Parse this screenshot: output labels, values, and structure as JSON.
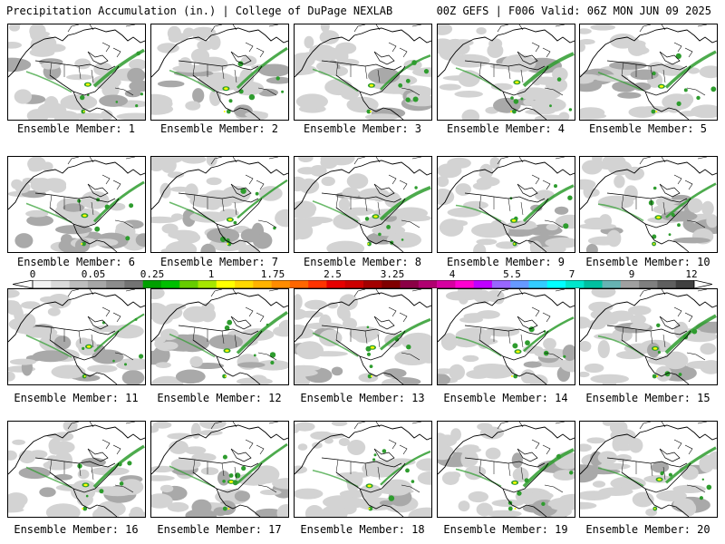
{
  "header": {
    "left": "Precipitation Accumulation (in.) | College of DuPage NEXLAB",
    "right": "00Z GEFS | F006 Valid: 06Z MON JUN 09 2025"
  },
  "members": [
    "Ensemble Member: 1",
    "Ensemble Member: 2",
    "Ensemble Member: 3",
    "Ensemble Member: 4",
    "Ensemble Member: 5",
    "Ensemble Member: 6",
    "Ensemble Member: 7",
    "Ensemble Member: 8",
    "Ensemble Member: 9",
    "Ensemble Member: 10",
    "Ensemble Member: 11",
    "Ensemble Member: 12",
    "Ensemble Member: 13",
    "Ensemble Member: 14",
    "Ensemble Member: 15",
    "Ensemble Member: 16",
    "Ensemble Member: 17",
    "Ensemble Member: 18",
    "Ensemble Member: 19",
    "Ensemble Member: 20"
  ],
  "colorbar": {
    "labels": [
      "0",
      "0.05",
      "0.25",
      "1",
      "1.75",
      "2.5",
      "3.25",
      "4",
      "5.5",
      "7",
      "9",
      "12"
    ],
    "colors": [
      "#f2f2f2",
      "#d9d9d9",
      "#bdbdbd",
      "#a6a6a6",
      "#8c8c8c",
      "#737373",
      "#00a000",
      "#00c000",
      "#66cc00",
      "#a6e600",
      "#ffff00",
      "#ffd900",
      "#ffb300",
      "#ff8c00",
      "#ff6600",
      "#ff3300",
      "#e60000",
      "#cc0000",
      "#a30000",
      "#800000",
      "#8b0045",
      "#b00070",
      "#d600a0",
      "#ff00d0",
      "#c000ff",
      "#9966ff",
      "#6699ff",
      "#33ccff",
      "#00ffff",
      "#00e6cc",
      "#00c0a0",
      "#66b3b3",
      "#a0a0a0",
      "#7f7f7f",
      "#5f5f5f",
      "#404040"
    ]
  },
  "colors": {
    "land": "#ffffff",
    "outline": "#000000",
    "precip_light": "#d3d3d3",
    "precip_medium": "#a9a9a9",
    "precip_green": "#2e9c2e",
    "precip_yellow": "#ffff00"
  }
}
